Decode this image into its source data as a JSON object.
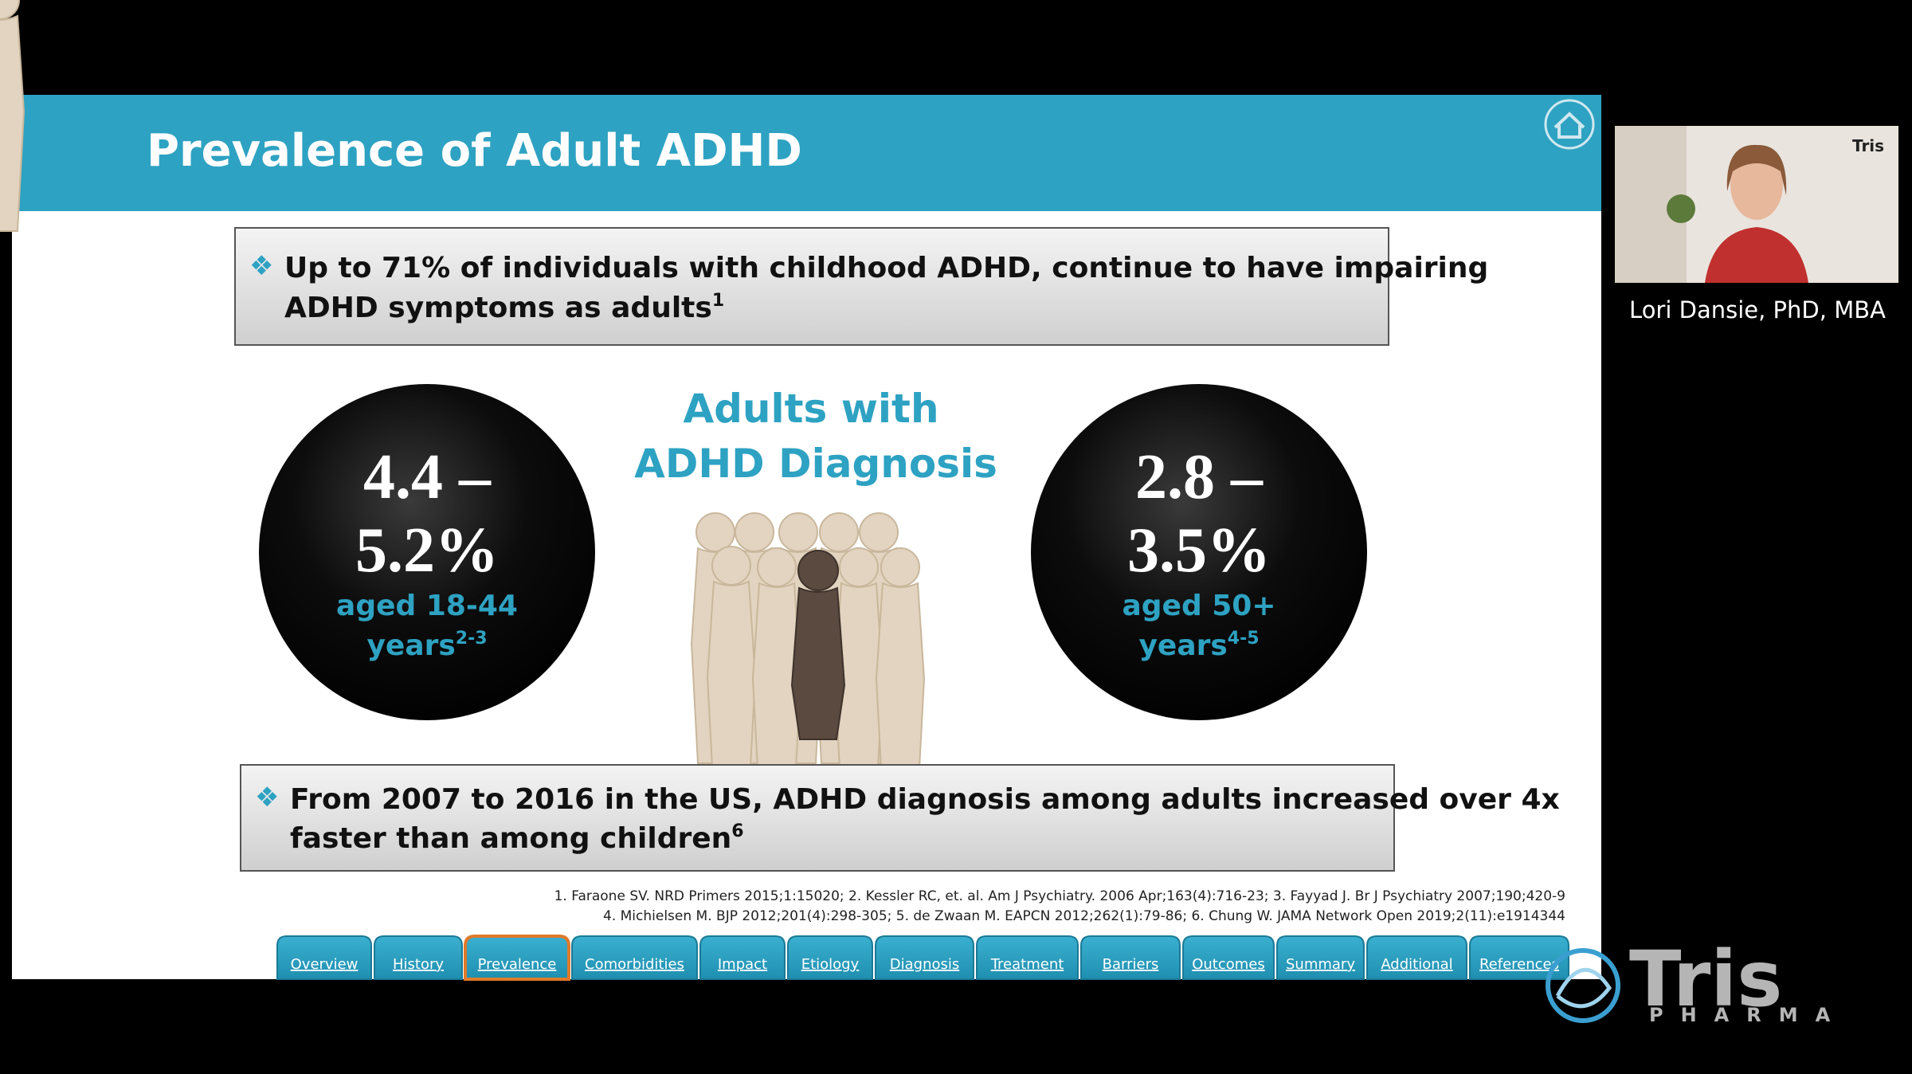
{
  "header": {
    "title": "Prevalence of Adult ADHD"
  },
  "box1": {
    "line1": "Up to 71% of individuals with childhood ADHD, continue to have impairing",
    "line2": "ADHD symptoms as adults",
    "sup": "1"
  },
  "left_circle": {
    "line1": "4.4 –",
    "line2": "5.2%",
    "line3": "aged 18-44",
    "line4": "years",
    "sup": "2-3"
  },
  "center": {
    "line1": "Adults with",
    "line2": "ADHD Diagnosis"
  },
  "right_circle": {
    "line1": "2.8 –",
    "line2": "3.5%",
    "line3": "aged 50+",
    "line4": "years",
    "sup": "4-5"
  },
  "box2": {
    "line1": "From 2007 to 2016 in the US, ADHD diagnosis among adults increased over 4x",
    "line2": "faster than among children",
    "sup": "6"
  },
  "references": [
    "1. Faraone SV. NRD Primers 2015;1:15020; 2. Kessler RC, et. al. Am J Psychiatry. 2006 Apr;163(4):716-23; 3. Fayyad J. Br J Psychiatry 2007;190;420-9",
    "4. Michielsen M. BJP 2012;201(4):298-305; 5. de Zwaan M. EAPCN 2012;262(1):79-86; 6. Chung W. JAMA Network Open 2019;2(11):e1914344"
  ],
  "tabs": [
    "Overview",
    "History",
    "Prevalence",
    "Comorbidities",
    "Impact",
    "Etiology",
    "Diagnosis",
    "Treatment",
    "Barriers",
    "Outcomes",
    "Summary",
    "Additional",
    "References"
  ],
  "presenter": {
    "name": "Lori Dansie, PhD, MBA",
    "cam_logo": "Tris"
  },
  "logo": {
    "name": "Tris",
    "sub": "PHARMA"
  }
}
